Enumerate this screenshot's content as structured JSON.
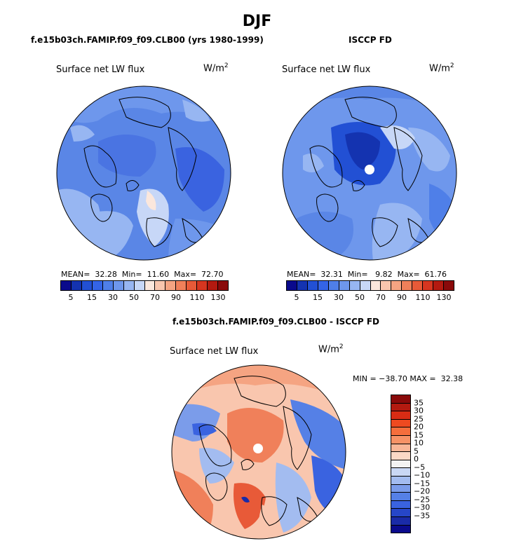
{
  "title": "DJF",
  "panels": {
    "model": {
      "subtitle": "f.e15b03ch.FAMIP.f09_f09.CLB00 (yrs 1980-1999)",
      "label": "Surface net LW flux",
      "units_base": "W/m",
      "units_exp": "2",
      "stats": "MEAN=  32.28  Min=  11.60  Max=  72.70",
      "mean": 32.28,
      "min": 11.6,
      "max": 72.7
    },
    "obs": {
      "subtitle": "ISCCP FD",
      "label": "Surface net LW flux",
      "units_base": "W/m",
      "units_exp": "2",
      "stats": "MEAN=  32.31  Min=   9.82  Max=  61.76",
      "mean": 32.31,
      "min": 9.82,
      "max": 61.76
    },
    "diff": {
      "subtitle": "f.e15b03ch.FAMIP.f09_f09.CLB00 - ISCCP FD",
      "label": "Surface net LW flux",
      "units_base": "W/m",
      "units_exp": "2",
      "stats": "MIN = −38.70 MAX =  32.38",
      "min": -38.7,
      "max": 32.38
    }
  },
  "colorbar_horizontal": {
    "colors": [
      "#0a0a8c",
      "#1433b0",
      "#2250d4",
      "#3464e6",
      "#4f7fe8",
      "#6e97ec",
      "#97b6f2",
      "#c7d7f7",
      "#fbe7dc",
      "#f9c6ae",
      "#f5a482",
      "#f0805a",
      "#e85a38",
      "#d63620",
      "#b31a10",
      "#8a0a0a"
    ],
    "ticks": [
      "5",
      "15",
      "30",
      "50",
      "70",
      "90",
      "110",
      "130"
    ]
  },
  "colorbar_vertical": {
    "colors": [
      "#8a0a0a",
      "#b31a10",
      "#d82c14",
      "#ee4a20",
      "#f56e3c",
      "#f79266",
      "#f9b697",
      "#fcd9c6",
      "#f3f3f3",
      "#c9d8f5",
      "#a3bcf0",
      "#7b9cea",
      "#5580e6",
      "#3a63e0",
      "#2646c8",
      "#1a2ba8",
      "#0a0a8c"
    ],
    "ticks": [
      "35",
      "30",
      "25",
      "20",
      "15",
      "10",
      "5",
      "0",
      "−5",
      "−10",
      "−15",
      "−20",
      "−25",
      "−30",
      "−35"
    ]
  }
}
